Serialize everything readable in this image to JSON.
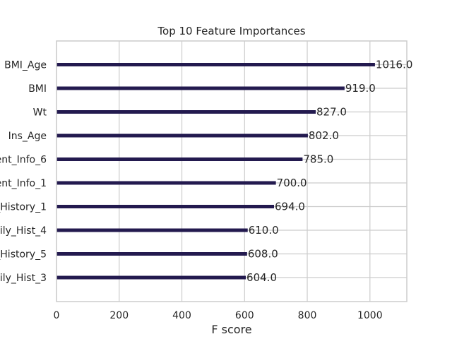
{
  "colors": {
    "bar": "#231a4f",
    "grid": "#cccccc",
    "spine": "#cccccc",
    "background": "#ffffff",
    "text": "#262626"
  },
  "chart_data": {
    "type": "bar",
    "orientation": "horizontal",
    "title": "Top 10 Feature Importances",
    "xlabel": "F score",
    "ylabel": "",
    "xlim": [
      0,
      1117.6
    ],
    "xticks": [
      0,
      200,
      400,
      600,
      800,
      1000
    ],
    "grid": true,
    "categories": [
      "BMI_Age",
      "BMI",
      "Wt",
      "Ins_Age",
      "ent_Info_6",
      "ent_Info_1",
      "_History_1",
      "ily_Hist_4",
      "_History_5",
      "ily_Hist_3"
    ],
    "values": [
      1016,
      919,
      827,
      802,
      785,
      700,
      694,
      610,
      608,
      604
    ],
    "data_labels": [
      "1016.0",
      "919.0",
      "827.0",
      "802.0",
      "785.0",
      "700.0",
      "694.0",
      "610.0",
      "608.0",
      "604.0"
    ]
  }
}
